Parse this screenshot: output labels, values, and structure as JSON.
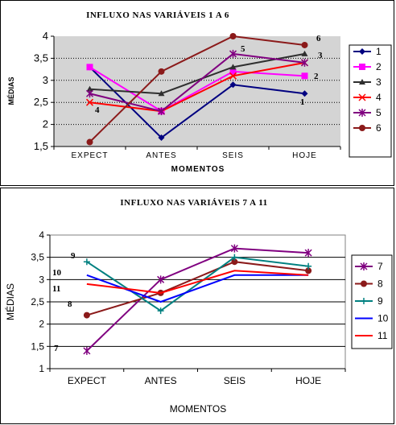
{
  "chart_data": [
    {
      "type": "line",
      "title": "INFLUXO NAS VARIÁVEIS 1 A  6",
      "xlabel": "MOMENTOS",
      "ylabel": "MÉDIAS",
      "categories": [
        "EXPECT",
        "ANTES",
        "SEIS",
        "HOJE"
      ],
      "ylim": [
        1.5,
        4
      ],
      "yticks": [
        "1,5",
        "2",
        "2,5",
        "3",
        "3,5",
        "4"
      ],
      "plot_bg": "#d4d4d4",
      "grid": true,
      "legend_position": "right",
      "series": [
        {
          "name": "1",
          "color": "#000080",
          "marker": "diamond",
          "values": [
            3.3,
            1.7,
            2.9,
            2.7
          ]
        },
        {
          "name": "2",
          "color": "#ff00ff",
          "marker": "square",
          "values": [
            3.3,
            2.3,
            3.2,
            3.1
          ]
        },
        {
          "name": "3",
          "color": "#2f2f2f",
          "marker": "triangle",
          "values": [
            2.8,
            2.7,
            3.3,
            3.6
          ]
        },
        {
          "name": "4",
          "color": "#ff0000",
          "marker": "x",
          "values": [
            2.5,
            2.3,
            3.1,
            3.4
          ]
        },
        {
          "name": "5",
          "color": "#800080",
          "marker": "star",
          "values": [
            2.7,
            2.3,
            3.6,
            3.4
          ]
        },
        {
          "name": "6",
          "color": "#8b1a1a",
          "marker": "circle",
          "values": [
            1.6,
            3.2,
            4.0,
            3.8
          ]
        }
      ],
      "annotations": [
        "1",
        "2",
        "3",
        "4",
        "5",
        "6"
      ]
    },
    {
      "type": "line",
      "title": "INFLUXO NAS VARIÁVEIS  7 A 11",
      "xlabel": "MOMENTOS",
      "ylabel": "MÉDIAS",
      "categories": [
        "EXPECT",
        "ANTES",
        "SEIS",
        "HOJE"
      ],
      "ylim": [
        1,
        4
      ],
      "yticks": [
        "1",
        "1,5",
        "2",
        "2,5",
        "3",
        "3,5",
        "4"
      ],
      "plot_bg": "#ffffff",
      "grid": true,
      "legend_position": "right",
      "series": [
        {
          "name": "7",
          "color": "#800080",
          "marker": "star",
          "values": [
            1.4,
            3.0,
            3.7,
            3.6
          ]
        },
        {
          "name": "8",
          "color": "#8b1a1a",
          "marker": "circle",
          "values": [
            2.2,
            2.7,
            3.4,
            3.2
          ]
        },
        {
          "name": "9",
          "color": "#008080",
          "marker": "plus",
          "values": [
            3.4,
            2.3,
            3.5,
            3.3
          ]
        },
        {
          "name": "10",
          "color": "#0000ff",
          "marker": "none",
          "values": [
            3.1,
            2.5,
            3.1,
            3.1
          ]
        },
        {
          "name": "11",
          "color": "#ff0000",
          "marker": "none",
          "values": [
            2.9,
            2.7,
            3.2,
            3.1
          ]
        }
      ],
      "annotations": [
        "9",
        "10",
        "11",
        "8",
        "7"
      ]
    }
  ]
}
